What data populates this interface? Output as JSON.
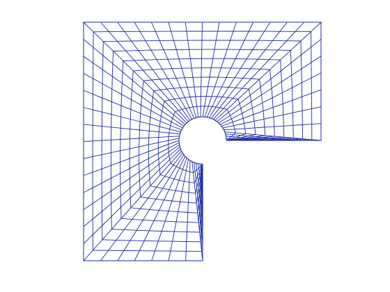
{
  "figure": {
    "background_color": "#ffffff",
    "line_color": "#1b2aa6",
    "description_kind": "structured quadrilateral mesh of an L-shaped domain with a circular hole at the re-entrant corner"
  },
  "mesh": {
    "rings": 10,
    "radial_spokes_per_side": 10,
    "domain_shape": "L-shape",
    "hole_shape": "circle"
  }
}
